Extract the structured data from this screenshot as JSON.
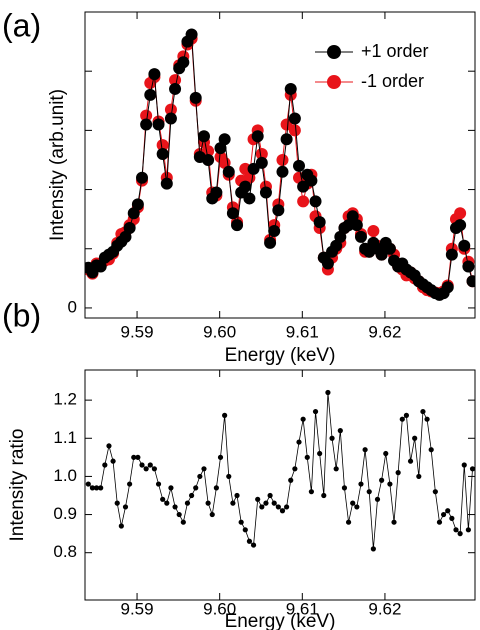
{
  "chart_data": [
    {
      "type": "line",
      "panel_label": "(a)",
      "xlabel": "Energy (keV)",
      "ylabel": "Intensity (arb.unit)",
      "legend": "upper right",
      "x": [
        9.5841,
        9.5846,
        9.5851,
        9.5856,
        9.5861,
        9.5866,
        9.5871,
        9.5876,
        9.5881,
        9.5886,
        9.5891,
        9.5896,
        9.5901,
        9.5906,
        9.5911,
        9.5916,
        9.5921,
        9.5926,
        9.5931,
        9.5936,
        9.5941,
        9.5946,
        9.5951,
        9.5956,
        9.5961,
        9.5966,
        9.5971,
        9.5976,
        9.5981,
        9.5986,
        9.5991,
        9.5996,
        9.6001,
        9.6006,
        9.6011,
        9.6016,
        9.6021,
        9.6026,
        9.6031,
        9.6036,
        9.6041,
        9.6046,
        9.6051,
        9.6056,
        9.6061,
        9.6066,
        9.6071,
        9.6076,
        9.6081,
        9.6086,
        9.6091,
        9.6096,
        9.6101,
        9.6106,
        9.6111,
        9.6116,
        9.6121,
        9.6126,
        9.6131,
        9.6136,
        9.6141,
        9.6146,
        9.6151,
        9.6156,
        9.6161,
        9.6166,
        9.6171,
        9.6176,
        9.6181,
        9.6186,
        9.6191,
        9.6196,
        9.6201,
        9.6206,
        9.6211,
        9.6216,
        9.6221,
        9.6226,
        9.6231,
        9.6236,
        9.6241,
        9.6246,
        9.6251,
        9.6256,
        9.6261,
        9.6266,
        9.6271,
        9.6276,
        9.6281,
        9.6286,
        9.6291,
        9.6296,
        9.6301,
        9.6306
      ],
      "series": [
        {
          "name": "+1 order",
          "color": "#000000",
          "values": [
            0.68,
            0.6,
            0.72,
            0.7,
            0.85,
            0.9,
            0.95,
            1.05,
            1.12,
            1.2,
            1.35,
            1.6,
            1.75,
            2.2,
            3.1,
            3.6,
            3.95,
            3.1,
            2.6,
            2.1,
            3.2,
            3.7,
            4.05,
            4.15,
            4.5,
            4.62,
            3.55,
            2.55,
            2.9,
            2.5,
            1.85,
            1.95,
            2.7,
            2.85,
            2.3,
            1.6,
            1.4,
            1.95,
            2.05,
            1.85,
            2.35,
            2.9,
            2.45,
            1.95,
            1.1,
            1.3,
            1.65,
            2.3,
            2.85,
            3.7,
            3.2,
            2.4,
            2.05,
            2.25,
            2.15,
            1.8,
            1.45,
            0.85,
            0.75,
            0.95,
            1.05,
            1.2,
            1.35,
            1.4,
            1.55,
            1.4,
            1.2,
            1.0,
            0.95,
            1.1,
            1.0,
            0.9,
            1.1,
            1.0,
            0.8,
            0.7,
            0.75,
            0.65,
            0.6,
            0.55,
            0.45,
            0.4,
            0.35,
            0.3,
            0.25,
            0.22,
            0.25,
            0.35,
            0.9,
            1.35,
            1.4,
            1.05,
            0.7,
            0.45
          ]
        },
        {
          "name": "-1 order",
          "color": "#e8141a",
          "values": [
            0.65,
            0.58,
            0.75,
            0.72,
            0.8,
            0.82,
            0.92,
            1.1,
            1.25,
            1.28,
            1.4,
            1.5,
            1.7,
            2.15,
            3.25,
            3.8,
            3.9,
            3.15,
            2.75,
            2.2,
            3.35,
            3.85,
            4.1,
            4.25,
            4.45,
            4.55,
            3.5,
            2.6,
            2.8,
            2.65,
            1.95,
            1.9,
            2.55,
            2.45,
            2.25,
            1.7,
            1.45,
            2.15,
            2.35,
            2.2,
            2.85,
            3.0,
            2.6,
            2.05,
            1.15,
            1.4,
            1.75,
            2.5,
            3.1,
            3.6,
            3.0,
            2.2,
            1.8,
            2.1,
            2.25,
            1.55,
            1.35,
            0.85,
            0.65,
            0.85,
            1.0,
            1.1,
            1.35,
            1.55,
            1.6,
            1.5,
            1.25,
            0.95,
            0.95,
            1.3,
            1.05,
            0.9,
            1.05,
            1.0,
            0.9,
            0.7,
            0.65,
            0.55,
            0.6,
            0.5,
            0.45,
            0.35,
            0.3,
            0.28,
            0.26,
            0.25,
            0.28,
            0.38,
            1.0,
            1.5,
            1.6,
            1.0,
            0.78,
            0.45
          ]
        }
      ],
      "xlim": [
        9.5837,
        9.6309
      ],
      "xticks": [
        9.59,
        {
          "value": 9.6,
          "label": "9.60"
        },
        9.61,
        9.62
      ],
      "ylim": [
        -0.17,
        5.0
      ],
      "yticks": [
        0,
        {
          "value": 1,
          "label": null
        },
        {
          "value": 2,
          "label": null
        },
        {
          "value": 3,
          "label": null
        },
        {
          "value": 4,
          "label": null
        }
      ]
    },
    {
      "type": "line",
      "panel_label": "(b)",
      "xlabel": "Energy (keV)",
      "ylabel": "Intensity ratio",
      "x": [
        9.5841,
        9.5846,
        9.5851,
        9.5856,
        9.5861,
        9.5866,
        9.5871,
        9.5876,
        9.5881,
        9.5886,
        9.5891,
        9.5896,
        9.5901,
        9.5906,
        9.5911,
        9.5916,
        9.5921,
        9.5926,
        9.5931,
        9.5936,
        9.5941,
        9.5946,
        9.5951,
        9.5956,
        9.5961,
        9.5966,
        9.5971,
        9.5976,
        9.5981,
        9.5986,
        9.5991,
        9.5996,
        9.6001,
        9.6006,
        9.6011,
        9.6016,
        9.6021,
        9.6026,
        9.6031,
        9.6036,
        9.6041,
        9.6046,
        9.6051,
        9.6056,
        9.6061,
        9.6066,
        9.6071,
        9.6076,
        9.6081,
        9.6086,
        9.6091,
        9.6096,
        9.6101,
        9.6106,
        9.6111,
        9.6116,
        9.6121,
        9.6126,
        9.6131,
        9.6136,
        9.6141,
        9.6146,
        9.6151,
        9.6156,
        9.6161,
        9.6166,
        9.6171,
        9.6176,
        9.6181,
        9.6186,
        9.6191,
        9.6196,
        9.6201,
        9.6206,
        9.6211,
        9.6216,
        9.6221,
        9.6226,
        9.6231,
        9.6236,
        9.6241,
        9.6246,
        9.6251,
        9.6256,
        9.6261,
        9.6266,
        9.6271,
        9.6276,
        9.6281,
        9.6286,
        9.6291,
        9.6296,
        9.6301,
        9.6306
      ],
      "series": [
        {
          "color": "#000000",
          "values": [
            0.98,
            0.97,
            0.97,
            0.97,
            1.03,
            1.08,
            1.04,
            0.93,
            0.87,
            0.92,
            0.98,
            1.05,
            1.05,
            1.03,
            1.02,
            1.03,
            1.02,
            0.98,
            0.94,
            0.93,
            0.97,
            0.92,
            0.9,
            0.88,
            0.93,
            0.95,
            0.97,
            1.0,
            1.02,
            0.93,
            0.9,
            0.97,
            1.05,
            1.16,
            1.0,
            0.93,
            0.95,
            0.88,
            0.86,
            0.83,
            0.82,
            0.94,
            0.92,
            0.93,
            0.95,
            0.93,
            0.92,
            0.91,
            0.92,
            0.99,
            1.02,
            1.09,
            1.15,
            1.05,
            0.96,
            1.17,
            1.06,
            0.95,
            1.22,
            1.1,
            1.02,
            1.12,
            0.97,
            0.88,
            0.93,
            0.92,
            0.98,
            1.07,
            0.96,
            0.81,
            0.94,
            0.99,
            1.06,
            0.98,
            0.88,
            1.01,
            1.15,
            1.16,
            1.04,
            1.1,
            1.0,
            1.17,
            1.15,
            1.07,
            0.96,
            0.88,
            0.9,
            0.91,
            0.89,
            0.86,
            0.85,
            1.03,
            0.86,
            1.02
          ]
        }
      ],
      "xlim": [
        9.5837,
        9.6309
      ],
      "xticks": [
        9.59,
        {
          "value": 9.6,
          "label": "9.60"
        },
        9.61,
        9.62
      ],
      "ylim": [
        0.676,
        1.279
      ],
      "yticks": [
        0.8,
        0.9,
        {
          "value": 1.0,
          "label": "1.0"
        },
        1.1,
        1.2
      ]
    }
  ]
}
